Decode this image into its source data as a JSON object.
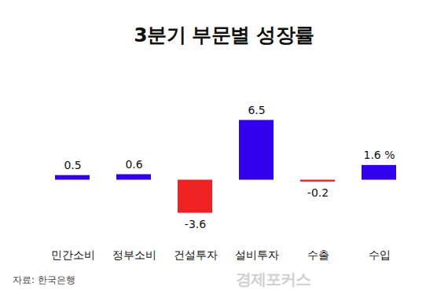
{
  "chart_data": {
    "type": "bar",
    "title": "3분기 부문별 성장률",
    "categories": [
      "민간소비",
      "정부소비",
      "건설투자",
      "설비투자",
      "수출",
      "수입"
    ],
    "values": [
      0.5,
      0.6,
      -3.6,
      6.5,
      -0.2,
      1.6
    ],
    "value_labels": [
      "0.5",
      "0.6",
      "-3.6",
      "6.5",
      "-0.2",
      "1.6 %"
    ],
    "colors": [
      "#3300ee",
      "#3300ee",
      "#ee2222",
      "#3300ee",
      "#ee2222",
      "#3300ee"
    ],
    "ylim": [
      -5,
      8
    ],
    "data_labels": true,
    "tick_labels": "x",
    "source": "자료: 한국은행",
    "watermark": "경제포커스"
  }
}
